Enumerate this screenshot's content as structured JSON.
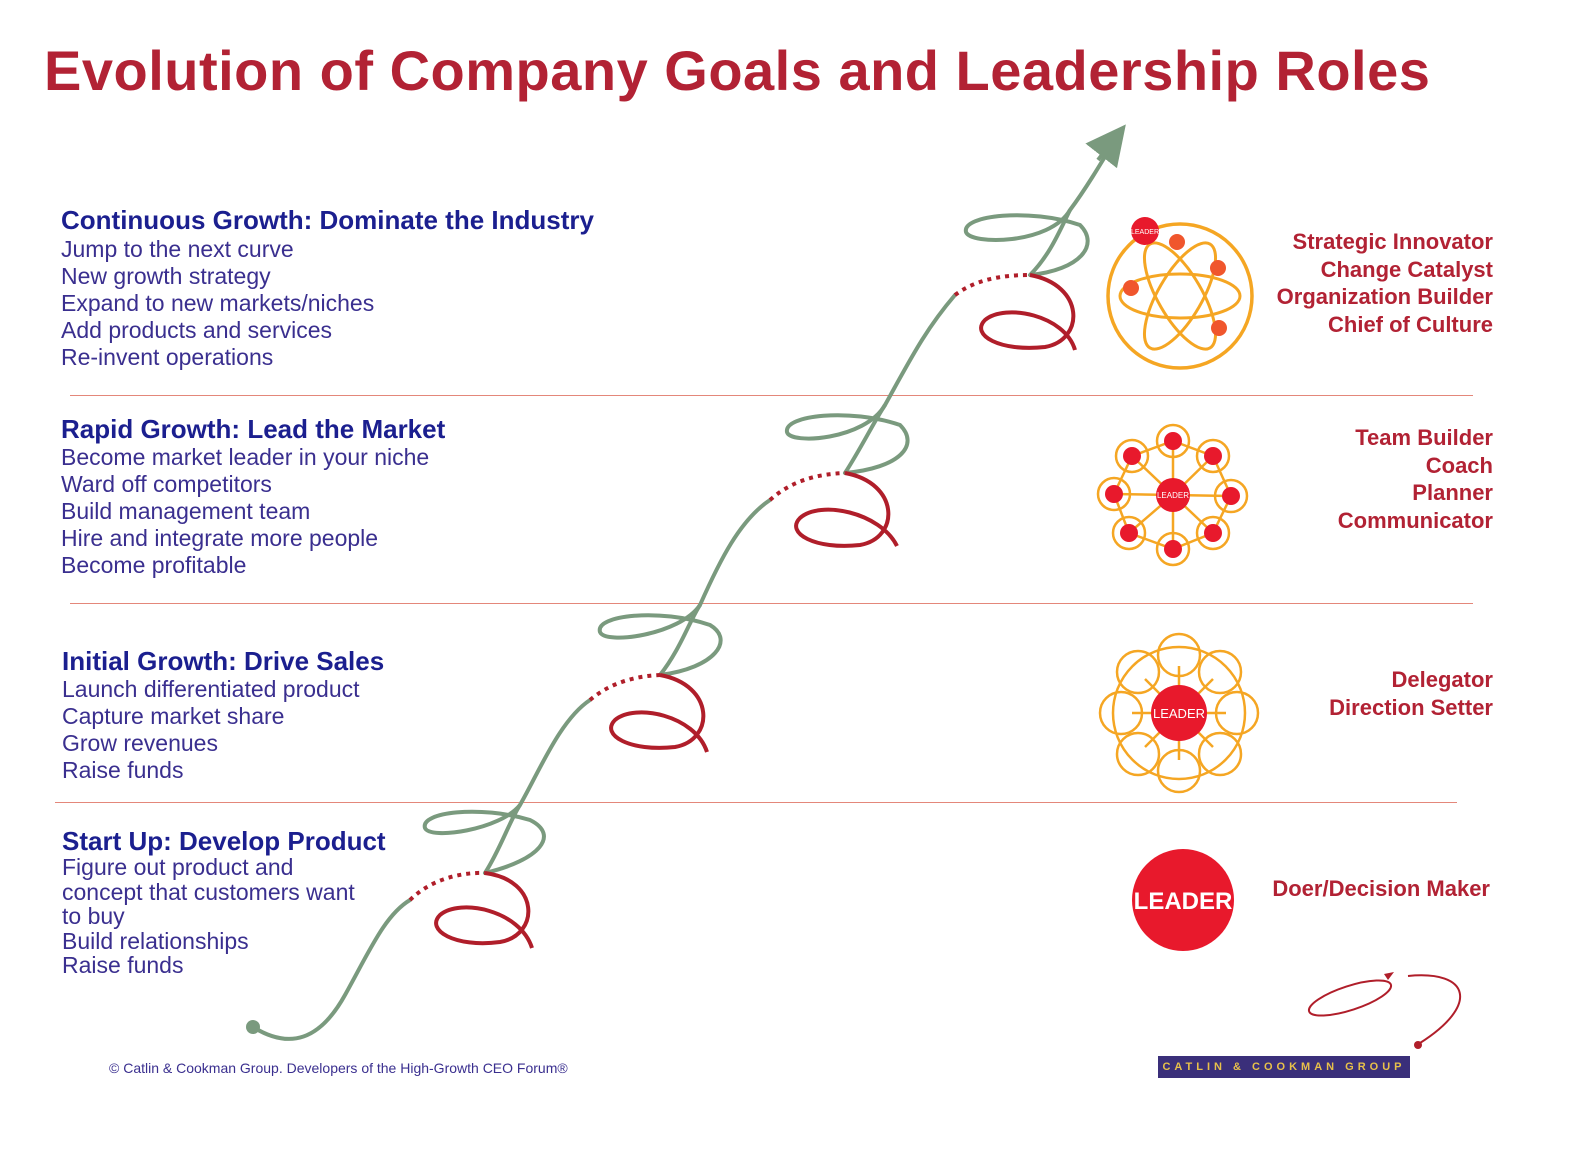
{
  "title": "Evolution of Company Goals and Leadership Roles",
  "stages": [
    {
      "heading": "Continuous Growth:  Dominate the Industry",
      "items": [
        "Jump to the next curve",
        "New growth strategy",
        "Expand to new markets/niches",
        "Add products and services",
        "Re-invent operations"
      ],
      "roles": [
        "Strategic Innovator",
        "Change Catalyst",
        "Organization Builder",
        "Chief of Culture"
      ],
      "icon_label": "LEADER"
    },
    {
      "heading": "Rapid Growth:  Lead the Market",
      "items": [
        "Become market leader in your niche",
        "Ward off competitors",
        "Build management team",
        "Hire and integrate more people",
        "Become profitable"
      ],
      "roles": [
        "Team Builder",
        "Coach",
        "Planner",
        "Communicator"
      ],
      "icon_label": "LEADER"
    },
    {
      "heading": "Initial Growth:  Drive Sales",
      "items": [
        "Launch differentiated product",
        "Capture market share",
        "Grow revenues",
        "Raise funds"
      ],
      "roles": [
        "Delegator",
        "Direction Setter"
      ],
      "icon_label": "LEADER"
    },
    {
      "heading": "Start Up:  Develop Product",
      "items": [
        "Figure out product and",
        "concept that customers want",
        "to buy",
        "Build relationships",
        "Raise funds"
      ],
      "roles": [
        "Doer/Decision Maker"
      ],
      "icon_label": "LEADER"
    }
  ],
  "footer": "© Catlin & Cookman Group.  Developers of  the High-Growth CEO Forum®",
  "logo_text": "CATLIN & COOKMAN GROUP",
  "colors": {
    "title_red": "#b22234",
    "heading_navy": "#1b1f8f",
    "body_purple": "#3a2f8f",
    "curve_green": "#7a9a7e",
    "loop_red": "#b01e2a",
    "orbit_orange": "#f5a623",
    "leader_red": "#e8192c",
    "divider": "#e4877a"
  }
}
